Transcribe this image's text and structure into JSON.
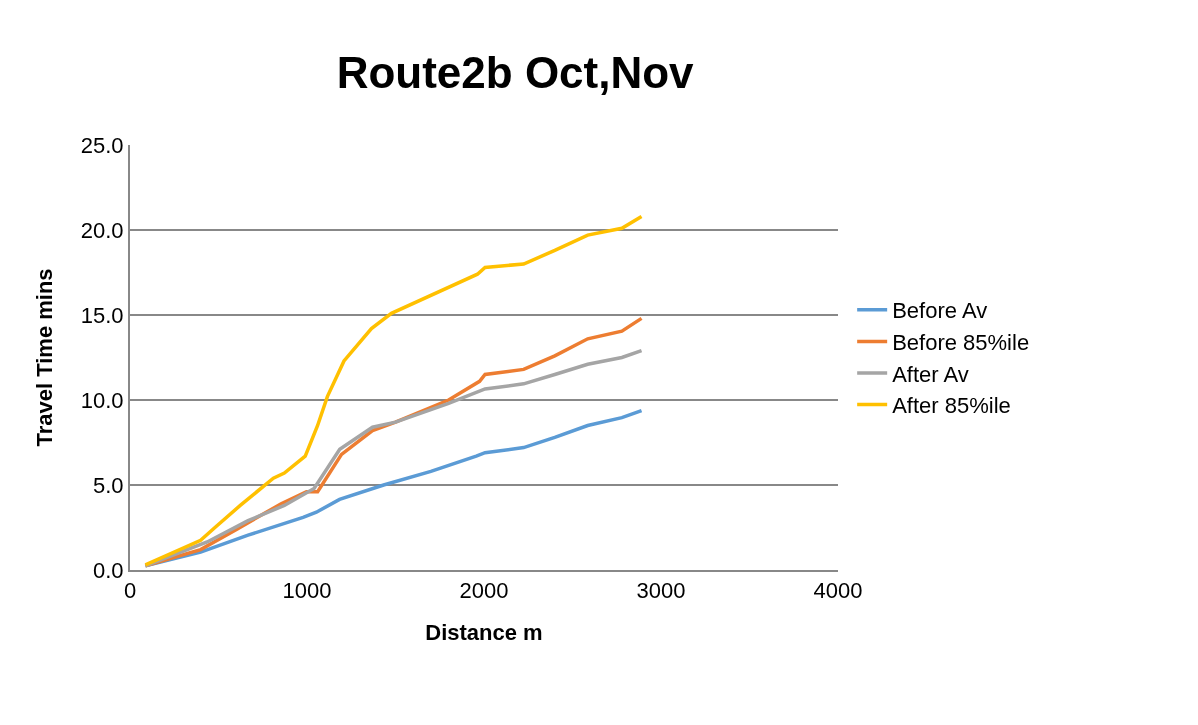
{
  "chart_data": {
    "type": "line",
    "title": "Route2b Oct,Nov",
    "xlabel": "Distance m",
    "ylabel": "Travel Time mins",
    "xlim": [
      0,
      4000
    ],
    "xticks": [
      0,
      1000,
      2000,
      3000,
      4000
    ],
    "ylim": [
      0,
      25
    ],
    "yticks": [
      {
        "value": 0,
        "label": "0.0"
      },
      {
        "value": 5,
        "label": "5.0"
      },
      {
        "value": 10,
        "label": "10.0"
      },
      {
        "value": 15,
        "label": "15.0"
      },
      {
        "value": 20,
        "label": "20.0"
      },
      {
        "value": 25,
        "label": "25.0"
      }
    ],
    "grid": "y",
    "legend": "right",
    "marker": "none",
    "line_style": "solid",
    "series": [
      {
        "name": "Before Av",
        "color": "#5b9bd5",
        "x": [
          87,
          399,
          667,
          978,
          1053,
          1184,
          1433,
          1700,
          1956,
          2006,
          2224,
          2400,
          2586,
          2779,
          2890
        ],
        "values": [
          0.25,
          1.05,
          2.05,
          3.1,
          3.4,
          4.15,
          5.0,
          5.8,
          6.7,
          6.9,
          7.2,
          7.8,
          8.5,
          8.96,
          9.37
        ]
      },
      {
        "name": "Before 85%ile",
        "color": "#ed7d31",
        "x": [
          87,
          399,
          604,
          854,
          997,
          1060,
          1195,
          1370,
          1500,
          1800,
          1975,
          2006,
          2224,
          2400,
          2586,
          2779,
          2890
        ],
        "values": [
          0.25,
          1.2,
          2.4,
          3.9,
          4.6,
          4.6,
          6.8,
          8.2,
          8.7,
          10.0,
          11.1,
          11.5,
          11.8,
          12.6,
          13.6,
          14.05,
          14.8
        ]
      },
      {
        "name": "After Av",
        "color": "#a5a5a5",
        "x": [
          87,
          436,
          667,
          872,
          1040,
          1185,
          1370,
          1500,
          1800,
          2006,
          2224,
          2400,
          2586,
          2779,
          2890
        ],
        "values": [
          0.25,
          1.65,
          2.9,
          3.8,
          4.8,
          7.1,
          8.4,
          8.7,
          9.8,
          10.65,
          10.95,
          11.5,
          12.1,
          12.5,
          12.9
        ]
      },
      {
        "name": "After 85%ile",
        "color": "#ffc000",
        "x": [
          87,
          399,
          480,
          623,
          810,
          872,
          990,
          1060,
          1115,
          1209,
          1364,
          1477,
          1963,
          2006,
          2224,
          2400,
          2586,
          2779,
          2890
        ],
        "values": [
          0.3,
          1.75,
          2.5,
          3.8,
          5.4,
          5.7,
          6.7,
          8.5,
          10.2,
          12.3,
          14.2,
          15.1,
          17.4,
          17.8,
          18.0,
          18.8,
          19.7,
          20.1,
          20.8
        ]
      }
    ]
  }
}
